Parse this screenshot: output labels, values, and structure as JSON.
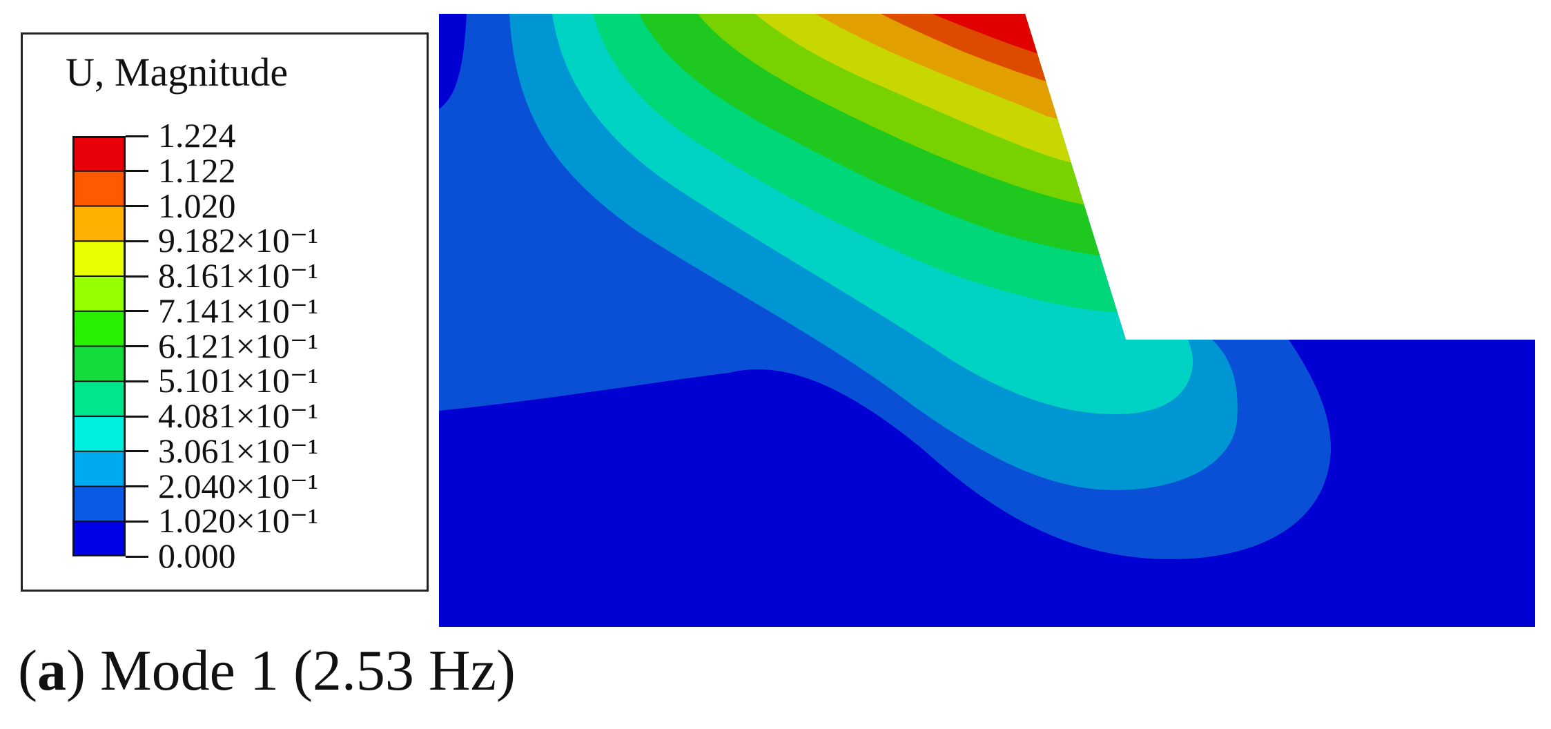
{
  "legend": {
    "title": "U, Magnitude",
    "labels": [
      "1.224",
      "1.122",
      "1.020",
      "9.182×10⁻¹",
      "8.161×10⁻¹",
      "7.141×10⁻¹",
      "6.121×10⁻¹",
      "5.101×10⁻¹",
      "4.081×10⁻¹",
      "3.061×10⁻¹",
      "2.040×10⁻¹",
      "1.020×10⁻¹",
      "0.000"
    ],
    "colors_top_to_bottom": [
      "#e8000b",
      "#ff5a00",
      "#ffb000",
      "#e8ff00",
      "#96ff00",
      "#28f000",
      "#14dc3c",
      "#00e68c",
      "#00f0e0",
      "#00aaf0",
      "#0a5ae6",
      "#0000e6"
    ]
  },
  "plot": {
    "domain_colors": {
      "band0": "#0000d2",
      "band1": "#0a50d6",
      "band2": "#0096d4",
      "band3": "#00d2c3",
      "band4": "#00d778",
      "band5": "#1ec81e",
      "band6": "#78d200",
      "band7": "#c8d700",
      "band8": "#e1a000",
      "band9": "#dc4b00",
      "band10": "#e10000"
    }
  },
  "caption": {
    "letter": "a",
    "open_paren": "(",
    "close_paren": ")",
    "text": " Mode 1 (2.53 Hz)"
  }
}
